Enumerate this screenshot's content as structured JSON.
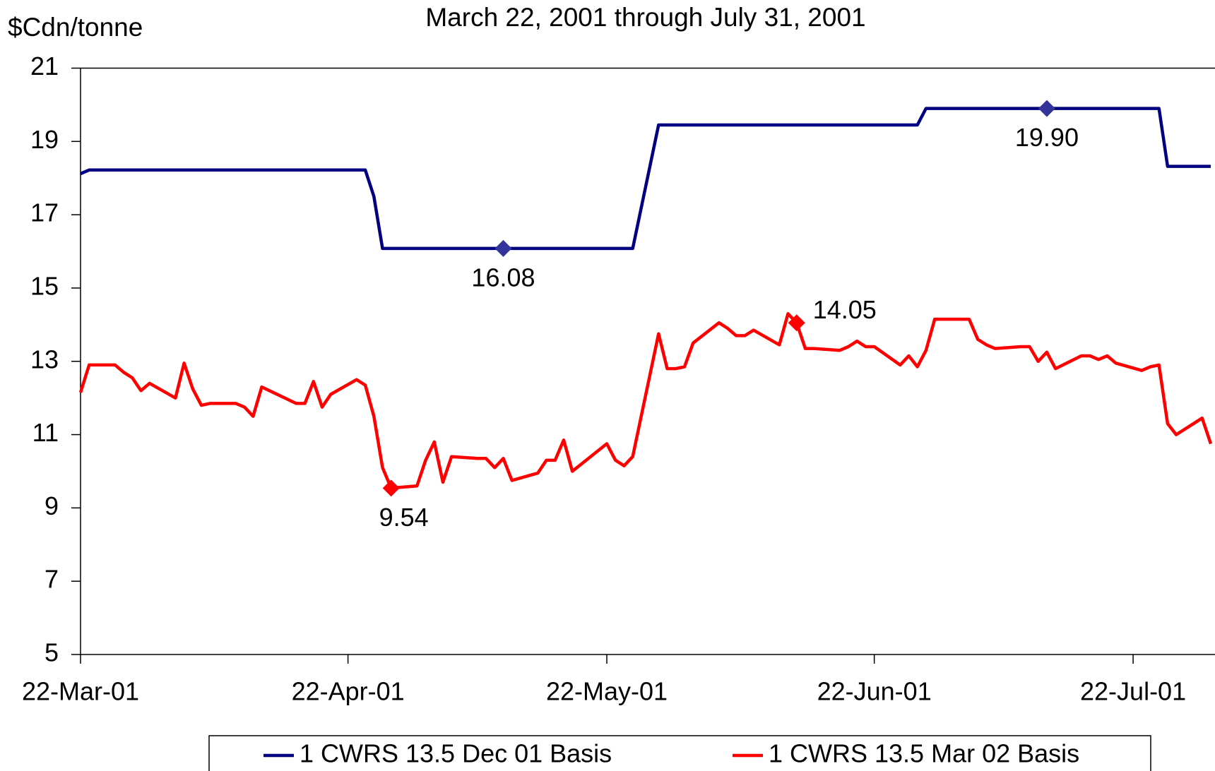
{
  "chart_data": {
    "type": "line",
    "title": "March 22, 2001 through July 31, 2001",
    "y_label": "$Cdn/tonne",
    "x": [
      "2001-03-22",
      "2001-03-23",
      "2001-03-26",
      "2001-03-27",
      "2001-03-28",
      "2001-03-29",
      "2001-03-30",
      "2001-04-02",
      "2001-04-03",
      "2001-04-04",
      "2001-04-05",
      "2001-04-06",
      "2001-04-09",
      "2001-04-10",
      "2001-04-11",
      "2001-04-12",
      "2001-04-16",
      "2001-04-17",
      "2001-04-18",
      "2001-04-19",
      "2001-04-20",
      "2001-04-23",
      "2001-04-24",
      "2001-04-25",
      "2001-04-26",
      "2001-04-27",
      "2001-04-30",
      "2001-05-01",
      "2001-05-02",
      "2001-05-03",
      "2001-05-04",
      "2001-05-07",
      "2001-05-08",
      "2001-05-09",
      "2001-05-10",
      "2001-05-11",
      "2001-05-14",
      "2001-05-15",
      "2001-05-16",
      "2001-05-17",
      "2001-05-18",
      "2001-05-22",
      "2001-05-23",
      "2001-05-24",
      "2001-05-25",
      "2001-05-28",
      "2001-05-29",
      "2001-05-30",
      "2001-05-31",
      "2001-06-01",
      "2001-06-04",
      "2001-06-05",
      "2001-06-06",
      "2001-06-07",
      "2001-06-08",
      "2001-06-11",
      "2001-06-12",
      "2001-06-13",
      "2001-06-14",
      "2001-06-15",
      "2001-06-18",
      "2001-06-19",
      "2001-06-20",
      "2001-06-21",
      "2001-06-22",
      "2001-06-25",
      "2001-06-26",
      "2001-06-27",
      "2001-06-28",
      "2001-06-29",
      "2001-07-03",
      "2001-07-04",
      "2001-07-05",
      "2001-07-06",
      "2001-07-09",
      "2001-07-10",
      "2001-07-11",
      "2001-07-12",
      "2001-07-13",
      "2001-07-16",
      "2001-07-17",
      "2001-07-18",
      "2001-07-19",
      "2001-07-20",
      "2001-07-23",
      "2001-07-24",
      "2001-07-25",
      "2001-07-26",
      "2001-07-27",
      "2001-07-30",
      "2001-07-31"
    ],
    "series": [
      {
        "name": "1 CWRS 13.5 Dec 01 Basis",
        "color": "#000080",
        "values": [
          18.12,
          18.22,
          18.22,
          18.22,
          18.22,
          18.22,
          18.22,
          18.22,
          18.22,
          18.22,
          18.22,
          18.22,
          18.22,
          18.22,
          18.22,
          18.22,
          18.22,
          18.22,
          18.22,
          18.22,
          18.22,
          18.22,
          18.22,
          17.5,
          16.08,
          16.08,
          16.08,
          16.08,
          16.08,
          16.08,
          16.08,
          16.08,
          16.08,
          16.08,
          16.08,
          16.08,
          16.08,
          16.08,
          16.08,
          16.08,
          16.08,
          16.08,
          16.08,
          16.08,
          16.08,
          19.45,
          19.45,
          19.45,
          19.45,
          19.45,
          19.45,
          19.45,
          19.45,
          19.45,
          19.45,
          19.45,
          19.45,
          19.45,
          19.45,
          19.45,
          19.45,
          19.45,
          19.45,
          19.45,
          19.45,
          19.45,
          19.45,
          19.45,
          19.9,
          19.9,
          19.9,
          19.9,
          19.9,
          19.9,
          19.9,
          19.9,
          19.9,
          19.9,
          19.9,
          19.9,
          19.9,
          19.9,
          19.9,
          19.9,
          19.9,
          19.9,
          19.9,
          18.32,
          18.32,
          18.32,
          18.32
        ]
      },
      {
        "name": "1 CWRS 13.5 Mar 02 Basis",
        "color": "#ff0000",
        "values": [
          12.15,
          12.9,
          12.9,
          12.7,
          12.55,
          12.2,
          12.4,
          12.0,
          12.95,
          12.25,
          11.8,
          11.85,
          11.85,
          11.75,
          11.5,
          12.3,
          11.85,
          11.85,
          12.45,
          11.75,
          12.1,
          12.5,
          12.35,
          11.5,
          10.1,
          9.54,
          9.6,
          10.3,
          10.8,
          9.7,
          10.4,
          10.35,
          10.35,
          10.1,
          10.35,
          9.75,
          9.95,
          10.3,
          10.3,
          10.85,
          10.0,
          10.75,
          10.3,
          10.15,
          10.4,
          13.75,
          12.8,
          12.8,
          12.85,
          13.5,
          14.05,
          13.9,
          13.7,
          13.7,
          13.85,
          13.45,
          14.3,
          14.05,
          13.35,
          13.35,
          13.3,
          13.4,
          13.55,
          13.4,
          13.4,
          12.9,
          13.15,
          12.85,
          13.3,
          14.15,
          14.15,
          13.6,
          13.45,
          13.35,
          13.4,
          13.4,
          13.0,
          13.25,
          12.8,
          13.15,
          13.15,
          13.05,
          13.15,
          12.95,
          12.75,
          12.85,
          12.9,
          11.3,
          11.0,
          11.45,
          10.75
        ]
      }
    ],
    "annotations": [
      {
        "x": "2001-05-10",
        "value": 16.08,
        "label": "16.08",
        "color": "#333399"
      },
      {
        "x": "2001-07-12",
        "value": 19.9,
        "label": "19.90",
        "color": "#333399"
      },
      {
        "x": "2001-04-27",
        "value": 9.54,
        "label": "9.54",
        "color": "#ff0000"
      },
      {
        "x": "2001-06-13",
        "value": 14.05,
        "label": "14.05",
        "color": "#ff0000"
      }
    ],
    "xlim": [
      "2001-03-22",
      "2001-07-31"
    ],
    "xticks": [
      {
        "value": "2001-03-22",
        "label": "22-Mar-01"
      },
      {
        "value": "2001-04-22",
        "label": "22-Apr-01"
      },
      {
        "value": "2001-05-22",
        "label": "22-May-01"
      },
      {
        "value": "2001-06-22",
        "label": "22-Jun-01"
      },
      {
        "value": "2001-07-22",
        "label": "22-Jul-01"
      }
    ],
    "ylim": [
      5,
      21
    ],
    "yticks": [
      5,
      7,
      9,
      11,
      13,
      15,
      17,
      19,
      21
    ],
    "grid": false,
    "legend": "bottom"
  }
}
